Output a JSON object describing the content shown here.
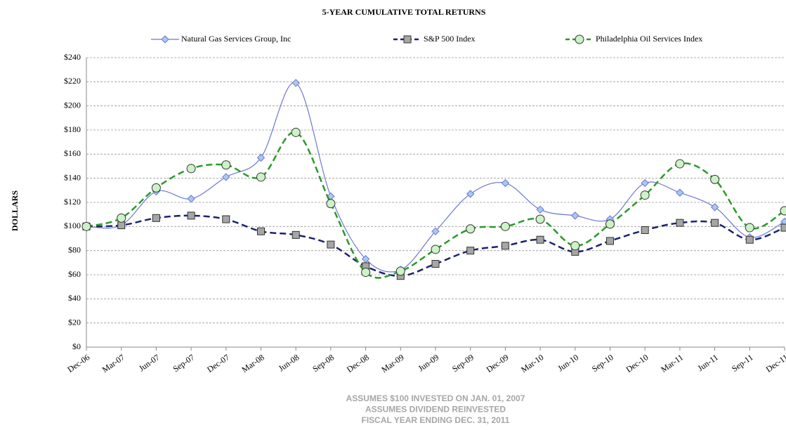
{
  "chart_data": {
    "type": "line",
    "title": "5-YEAR CUMULATIVE  TOTAL RETURNS",
    "y_label": "DOLLARS",
    "notes": [
      "ASSUMES $100 INVESTED ON JAN. 01, 2007",
      "ASSUMES DIVIDEND REINVESTED",
      "FISCAL YEAR ENDING DEC. 31, 2011"
    ],
    "categories": [
      "Dec-06",
      "Mar-07",
      "Jun-07",
      "Sep-07",
      "Dec-07",
      "Mar-08",
      "Jun-08",
      "Sep-08",
      "Dec-08",
      "Mar-09",
      "Jun-09",
      "Sep-09",
      "Dec-09",
      "Mar-10",
      "Jun-10",
      "Sep-10",
      "Dec-10",
      "Mar-11",
      "Jun-11",
      "Sep-11",
      "Dec-11"
    ],
    "series": [
      {
        "name": "Natural Gas Services Group, Inc",
        "color": "#6b78d4",
        "marker_fill": "#a8c8f0",
        "marker": "diamond",
        "dashed": false,
        "values": [
          100,
          101,
          129,
          123,
          141,
          157,
          219,
          125,
          73,
          64,
          96,
          127,
          136,
          114,
          109,
          106,
          136,
          128,
          116,
          91,
          104
        ]
      },
      {
        "name": "S&P 500 Index",
        "color": "#1b2370",
        "marker_fill": "#a6a6a6",
        "marker": "square",
        "dashed": true,
        "values": [
          100,
          101,
          107,
          109,
          106,
          96,
          93,
          85,
          67,
          59,
          69,
          80,
          84,
          89,
          79,
          88,
          97,
          103,
          103,
          89,
          99
        ]
      },
      {
        "name": "Philadelphia Oil Services Index",
        "color": "#2a9a2a",
        "marker_fill": "#ccf2c8",
        "marker": "circle",
        "dashed": true,
        "values": [
          100,
          107,
          132,
          148,
          151,
          141,
          178,
          119,
          62,
          63,
          81,
          98,
          100,
          106,
          84,
          102,
          126,
          152,
          139,
          99,
          113
        ]
      }
    ],
    "ylim": [
      0,
      240
    ],
    "yticks": [
      {
        "value": 0,
        "label": "$0"
      },
      {
        "value": 20,
        "label": "$20"
      },
      {
        "value": 40,
        "label": "$40"
      },
      {
        "value": 60,
        "label": "$60"
      },
      {
        "value": 80,
        "label": "$80"
      },
      {
        "value": 100,
        "label": "$100"
      },
      {
        "value": 120,
        "label": "$120"
      },
      {
        "value": 140,
        "label": "$140"
      },
      {
        "value": 160,
        "label": "$160"
      },
      {
        "value": 180,
        "label": "$180"
      },
      {
        "value": 200,
        "label": "$200"
      },
      {
        "value": 220,
        "label": "$220"
      },
      {
        "value": 240,
        "label": "$240"
      }
    ],
    "grid": true
  }
}
